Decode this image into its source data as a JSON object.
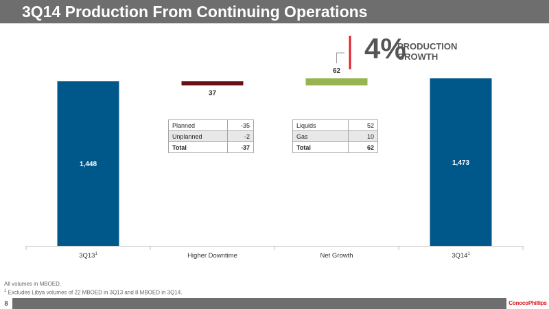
{
  "title": "3Q14 Production From Continuing Operations",
  "chart_data": {
    "type": "bar",
    "subtype": "waterfall",
    "categories": [
      "3Q13",
      "Higher Downtime",
      "Net Growth",
      "3Q14"
    ],
    "category_superscripts": [
      "1",
      "",
      "",
      "1"
    ],
    "values": [
      1448,
      -37,
      62,
      1473
    ],
    "data_labels": [
      "1,448",
      "37",
      "62",
      "1,473"
    ],
    "ylim": [
      0,
      1510
    ],
    "grid": false,
    "colors": [
      "#00578a",
      "#6b0f12",
      "#98b450",
      "#00578a"
    ]
  },
  "growth_callout": {
    "value": "4%",
    "label_line1": "PRODUCTION",
    "label_line2": "GROWTH",
    "accent_color": "#e0202a"
  },
  "tables": {
    "downtime": [
      {
        "label": "Planned",
        "value": "-35"
      },
      {
        "label": "Unplanned",
        "value": "-2"
      },
      {
        "label": "Total",
        "value": "-37"
      }
    ],
    "growth": [
      {
        "label": "Liquids",
        "value": "52"
      },
      {
        "label": "Gas",
        "value": "10"
      },
      {
        "label": "Total",
        "value": "62"
      }
    ]
  },
  "footnotes": {
    "line1": "All volumes in MBOED.",
    "line2_marker": "1",
    "line2": " Excludes Libya volumes of 22 MBOED in 3Q13 and 8 MBOED in 3Q14."
  },
  "page_number": "8",
  "logo_text": "ConocoPhillips"
}
